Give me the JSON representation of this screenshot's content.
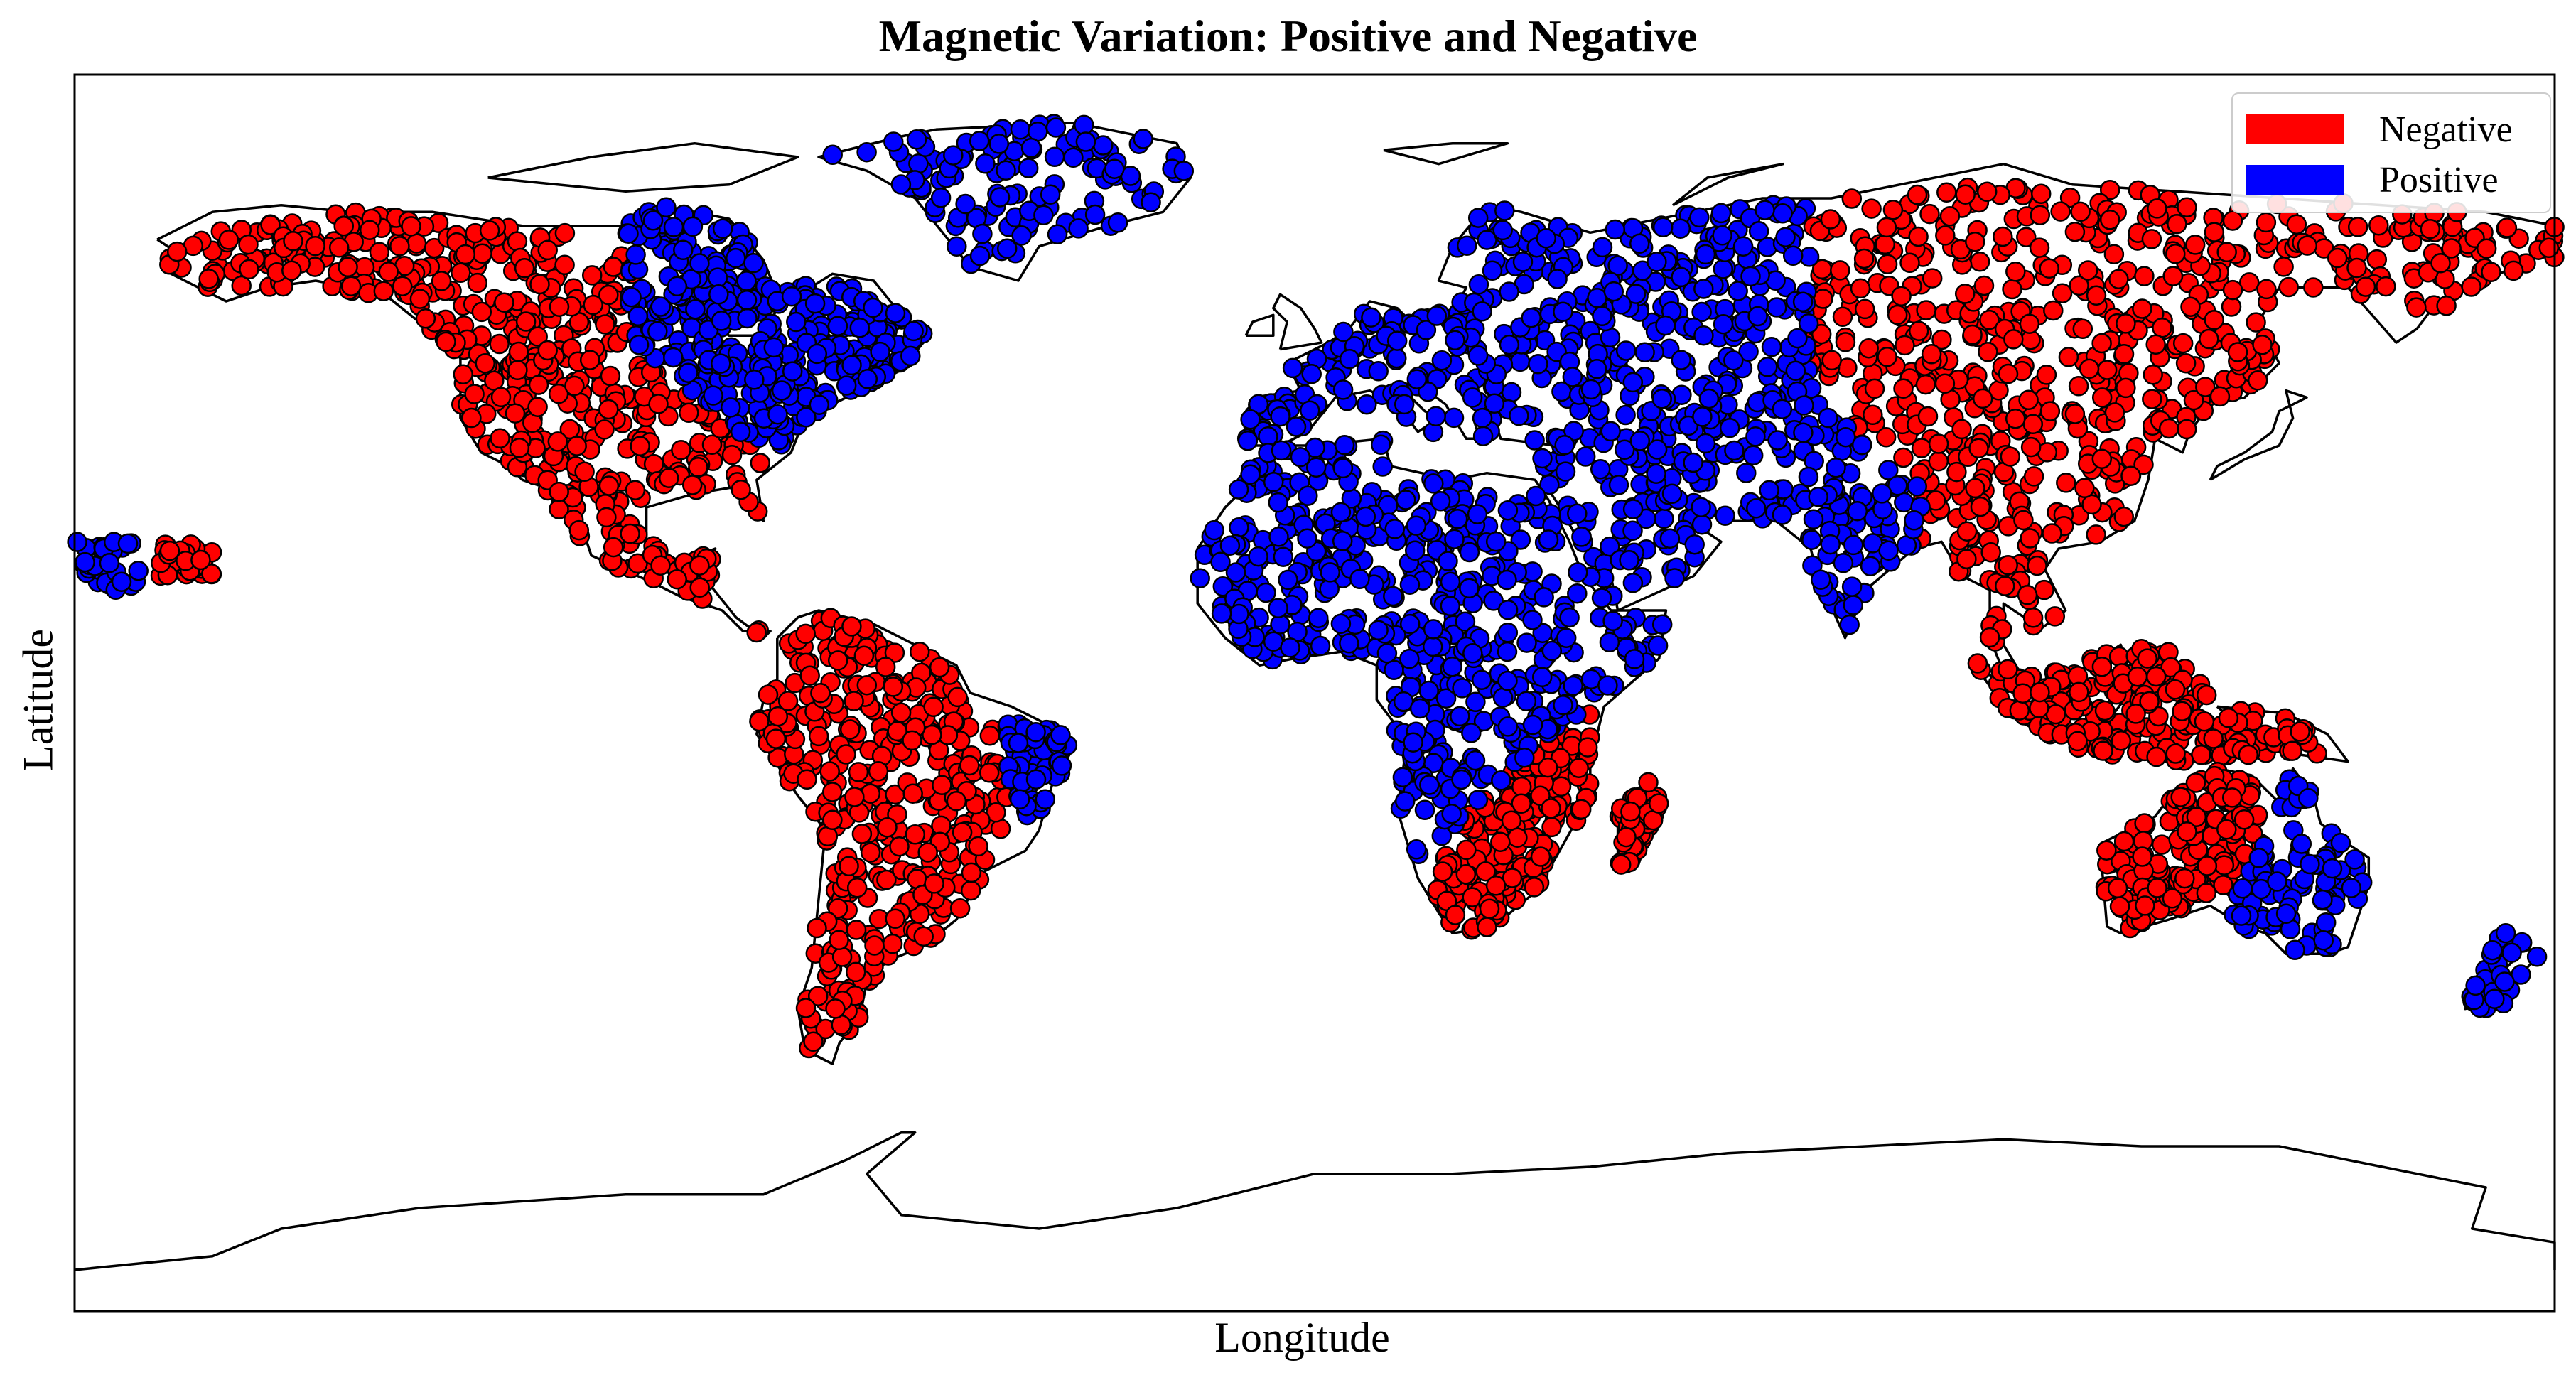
{
  "chart_data": {
    "type": "scatter",
    "title": "Magnetic Variation: Positive and Negative",
    "xlabel": "Longitude",
    "ylabel": "Latitude",
    "xlim": [
      -180,
      180
    ],
    "ylim": [
      -90,
      90
    ],
    "grid": false,
    "legend_position": "top-right",
    "series": [
      {
        "name": "Negative",
        "color": "#ff0000",
        "edge_color": "#000000"
      },
      {
        "name": "Positive",
        "color": "#0000ff",
        "edge_color": "#000000"
      }
    ],
    "background_map": "world coastlines",
    "approx_point_count": 20000
  }
}
